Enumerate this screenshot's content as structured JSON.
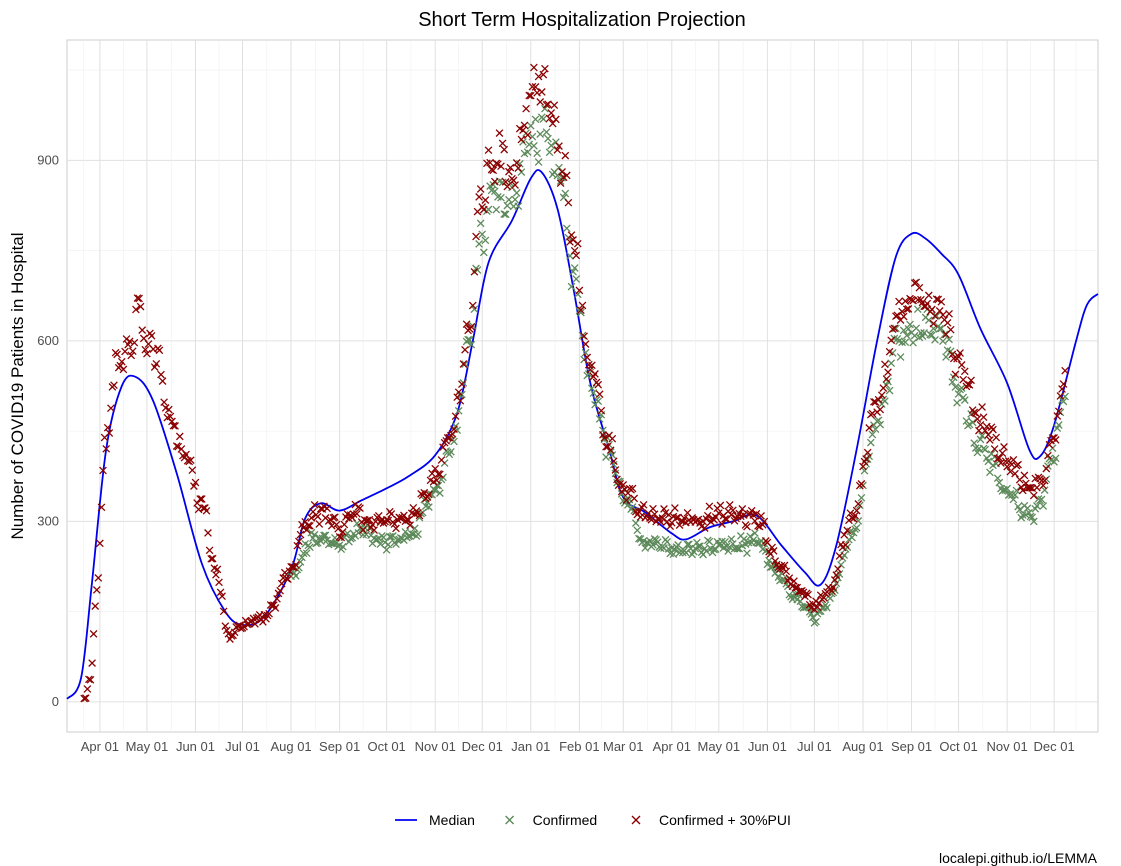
{
  "chart_data": {
    "type": "line",
    "title": "Short Term Hospitalization Projection",
    "xlabel": "",
    "ylabel": "Number of COVID19 Patients in Hospital",
    "caption": "localepi.github.io/LEMMA",
    "x_range": [
      "2020-03-11",
      "2021-12-29"
    ],
    "ylim": [
      -50,
      1100
    ],
    "y_ticks": [
      0,
      300,
      600,
      900
    ],
    "x_ticks": [
      {
        "date": "2020-04-01",
        "label": "Apr 01"
      },
      {
        "date": "2020-05-01",
        "label": "May 01"
      },
      {
        "date": "2020-06-01",
        "label": "Jun 01"
      },
      {
        "date": "2020-07-01",
        "label": "Jul 01"
      },
      {
        "date": "2020-08-01",
        "label": "Aug 01"
      },
      {
        "date": "2020-09-01",
        "label": "Sep 01"
      },
      {
        "date": "2020-10-01",
        "label": "Oct 01"
      },
      {
        "date": "2020-11-01",
        "label": "Nov 01"
      },
      {
        "date": "2020-12-01",
        "label": "Dec 01"
      },
      {
        "date": "2021-01-01",
        "label": "Jan 01"
      },
      {
        "date": "2021-02-01",
        "label": "Feb 01"
      },
      {
        "date": "2021-03-01",
        "label": "Mar 01"
      },
      {
        "date": "2021-04-01",
        "label": "Apr 01"
      },
      {
        "date": "2021-05-01",
        "label": "May 01"
      },
      {
        "date": "2021-06-01",
        "label": "Jun 01"
      },
      {
        "date": "2021-07-01",
        "label": "Jul 01"
      },
      {
        "date": "2021-08-01",
        "label": "Aug 01"
      },
      {
        "date": "2021-09-01",
        "label": "Sep 01"
      },
      {
        "date": "2021-10-01",
        "label": "Oct 01"
      },
      {
        "date": "2021-11-01",
        "label": "Nov 01"
      },
      {
        "date": "2021-12-01",
        "label": "Dec 01"
      }
    ],
    "grid": true,
    "legend_position": "bottom",
    "series": [
      {
        "name": "Median",
        "kind": "line",
        "color": "#0000ee",
        "points": [
          [
            "2020-03-11",
            5
          ],
          [
            "2020-03-20",
            40
          ],
          [
            "2020-03-27",
            200
          ],
          [
            "2020-04-05",
            420
          ],
          [
            "2020-04-15",
            525
          ],
          [
            "2020-04-24",
            540
          ],
          [
            "2020-05-05",
            500
          ],
          [
            "2020-05-20",
            380
          ],
          [
            "2020-06-05",
            230
          ],
          [
            "2020-06-20",
            150
          ],
          [
            "2020-07-01",
            128
          ],
          [
            "2020-07-15",
            142
          ],
          [
            "2020-08-01",
            220
          ],
          [
            "2020-08-10",
            305
          ],
          [
            "2020-08-20",
            330
          ],
          [
            "2020-09-01",
            318
          ],
          [
            "2020-09-15",
            335
          ],
          [
            "2020-10-01",
            355
          ],
          [
            "2020-10-15",
            375
          ],
          [
            "2020-11-01",
            410
          ],
          [
            "2020-11-15",
            480
          ],
          [
            "2020-11-25",
            600
          ],
          [
            "2020-12-05",
            730
          ],
          [
            "2020-12-20",
            800
          ],
          [
            "2021-01-01",
            870
          ],
          [
            "2021-01-08",
            880
          ],
          [
            "2021-01-18",
            820
          ],
          [
            "2021-01-28",
            690
          ],
          [
            "2021-02-08",
            530
          ],
          [
            "2021-02-20",
            420
          ],
          [
            "2021-03-01",
            340
          ],
          [
            "2021-03-15",
            315
          ],
          [
            "2021-04-01",
            280
          ],
          [
            "2021-04-10",
            270
          ],
          [
            "2021-04-25",
            290
          ],
          [
            "2021-05-10",
            300
          ],
          [
            "2021-05-25",
            310
          ],
          [
            "2021-06-10",
            260
          ],
          [
            "2021-06-25",
            215
          ],
          [
            "2021-07-05",
            195
          ],
          [
            "2021-07-15",
            260
          ],
          [
            "2021-07-28",
            420
          ],
          [
            "2021-08-10",
            600
          ],
          [
            "2021-08-22",
            740
          ],
          [
            "2021-09-01",
            778
          ],
          [
            "2021-09-10",
            770
          ],
          [
            "2021-09-20",
            745
          ],
          [
            "2021-10-01",
            710
          ],
          [
            "2021-10-15",
            620
          ],
          [
            "2021-11-01",
            530
          ],
          [
            "2021-11-15",
            420
          ],
          [
            "2021-11-22",
            408
          ],
          [
            "2021-12-01",
            460
          ],
          [
            "2021-12-15",
            600
          ],
          [
            "2021-12-22",
            660
          ],
          [
            "2021-12-29",
            678
          ]
        ]
      },
      {
        "name": "Confirmed",
        "kind": "scatter",
        "color": "#5d8a5a",
        "anchors": [
          [
            "2020-08-01",
            205
          ],
          [
            "2020-08-15",
            270
          ],
          [
            "2020-09-01",
            265
          ],
          [
            "2020-09-15",
            285
          ],
          [
            "2020-10-01",
            265
          ],
          [
            "2020-10-15",
            275
          ],
          [
            "2020-11-01",
            350
          ],
          [
            "2020-11-12",
            425
          ],
          [
            "2020-11-22",
            580
          ],
          [
            "2020-12-01",
            780
          ],
          [
            "2020-12-10",
            855
          ],
          [
            "2020-12-20",
            830
          ],
          [
            "2021-01-01",
            940
          ],
          [
            "2021-01-10",
            935
          ],
          [
            "2021-01-20",
            870
          ],
          [
            "2021-01-28",
            720
          ],
          [
            "2021-02-08",
            540
          ],
          [
            "2021-02-20",
            420
          ],
          [
            "2021-03-01",
            340
          ],
          [
            "2021-03-15",
            265
          ],
          [
            "2021-04-01",
            255
          ],
          [
            "2021-04-20",
            255
          ],
          [
            "2021-05-10",
            260
          ],
          [
            "2021-05-25",
            265
          ],
          [
            "2021-06-08",
            210
          ],
          [
            "2021-06-20",
            170
          ],
          [
            "2021-07-01",
            140
          ],
          [
            "2021-07-10",
            165
          ],
          [
            "2021-07-25",
            280
          ],
          [
            "2021-08-10",
            470
          ],
          [
            "2021-08-25",
            610
          ],
          [
            "2021-09-05",
            625
          ],
          [
            "2021-09-20",
            620
          ],
          [
            "2021-10-01",
            510
          ],
          [
            "2021-10-15",
            430
          ],
          [
            "2021-11-01",
            345
          ],
          [
            "2021-11-15",
            310
          ],
          [
            "2021-11-22",
            330
          ],
          [
            "2021-12-01",
            420
          ],
          [
            "2021-12-08",
            510
          ]
        ]
      },
      {
        "name": "Confirmed + 30%PUI",
        "kind": "scatter",
        "color": "#8b0000",
        "anchors": [
          [
            "2020-03-22",
            5
          ],
          [
            "2020-03-26",
            40
          ],
          [
            "2020-03-30",
            180
          ],
          [
            "2020-04-04",
            420
          ],
          [
            "2020-04-12",
            560
          ],
          [
            "2020-04-20",
            600
          ],
          [
            "2020-04-26",
            655
          ],
          [
            "2020-05-01",
            590
          ],
          [
            "2020-05-08",
            570
          ],
          [
            "2020-05-15",
            470
          ],
          [
            "2020-05-25",
            410
          ],
          [
            "2020-06-05",
            330
          ],
          [
            "2020-06-15",
            210
          ],
          [
            "2020-06-22",
            110
          ],
          [
            "2020-07-01",
            128
          ],
          [
            "2020-07-15",
            140
          ],
          [
            "2020-08-01",
            220
          ],
          [
            "2020-08-10",
            300
          ],
          [
            "2020-08-20",
            315
          ],
          [
            "2020-09-01",
            285
          ],
          [
            "2020-09-10",
            320
          ],
          [
            "2020-09-20",
            295
          ],
          [
            "2020-10-01",
            300
          ],
          [
            "2020-10-15",
            300
          ],
          [
            "2020-11-01",
            370
          ],
          [
            "2020-11-12",
            450
          ],
          [
            "2020-11-22",
            610
          ],
          [
            "2020-12-01",
            850
          ],
          [
            "2020-12-10",
            910
          ],
          [
            "2020-12-20",
            880
          ],
          [
            "2021-01-01",
            1000
          ],
          [
            "2021-01-08",
            1040
          ],
          [
            "2021-01-15",
            960
          ],
          [
            "2021-01-22",
            880
          ],
          [
            "2021-01-28",
            760
          ],
          [
            "2021-02-08",
            560
          ],
          [
            "2021-02-20",
            430
          ],
          [
            "2021-03-01",
            350
          ],
          [
            "2021-03-15",
            310
          ],
          [
            "2021-04-01",
            305
          ],
          [
            "2021-04-20",
            305
          ],
          [
            "2021-05-10",
            310
          ],
          [
            "2021-05-25",
            305
          ],
          [
            "2021-06-08",
            230
          ],
          [
            "2021-06-20",
            190
          ],
          [
            "2021-07-01",
            160
          ],
          [
            "2021-07-10",
            185
          ],
          [
            "2021-07-25",
            300
          ],
          [
            "2021-08-10",
            500
          ],
          [
            "2021-08-25",
            650
          ],
          [
            "2021-09-05",
            670
          ],
          [
            "2021-09-20",
            660
          ],
          [
            "2021-10-01",
            560
          ],
          [
            "2021-10-15",
            470
          ],
          [
            "2021-11-01",
            400
          ],
          [
            "2021-11-15",
            355
          ],
          [
            "2021-11-22",
            360
          ],
          [
            "2021-12-01",
            440
          ],
          [
            "2021-12-08",
            550
          ]
        ]
      }
    ]
  }
}
